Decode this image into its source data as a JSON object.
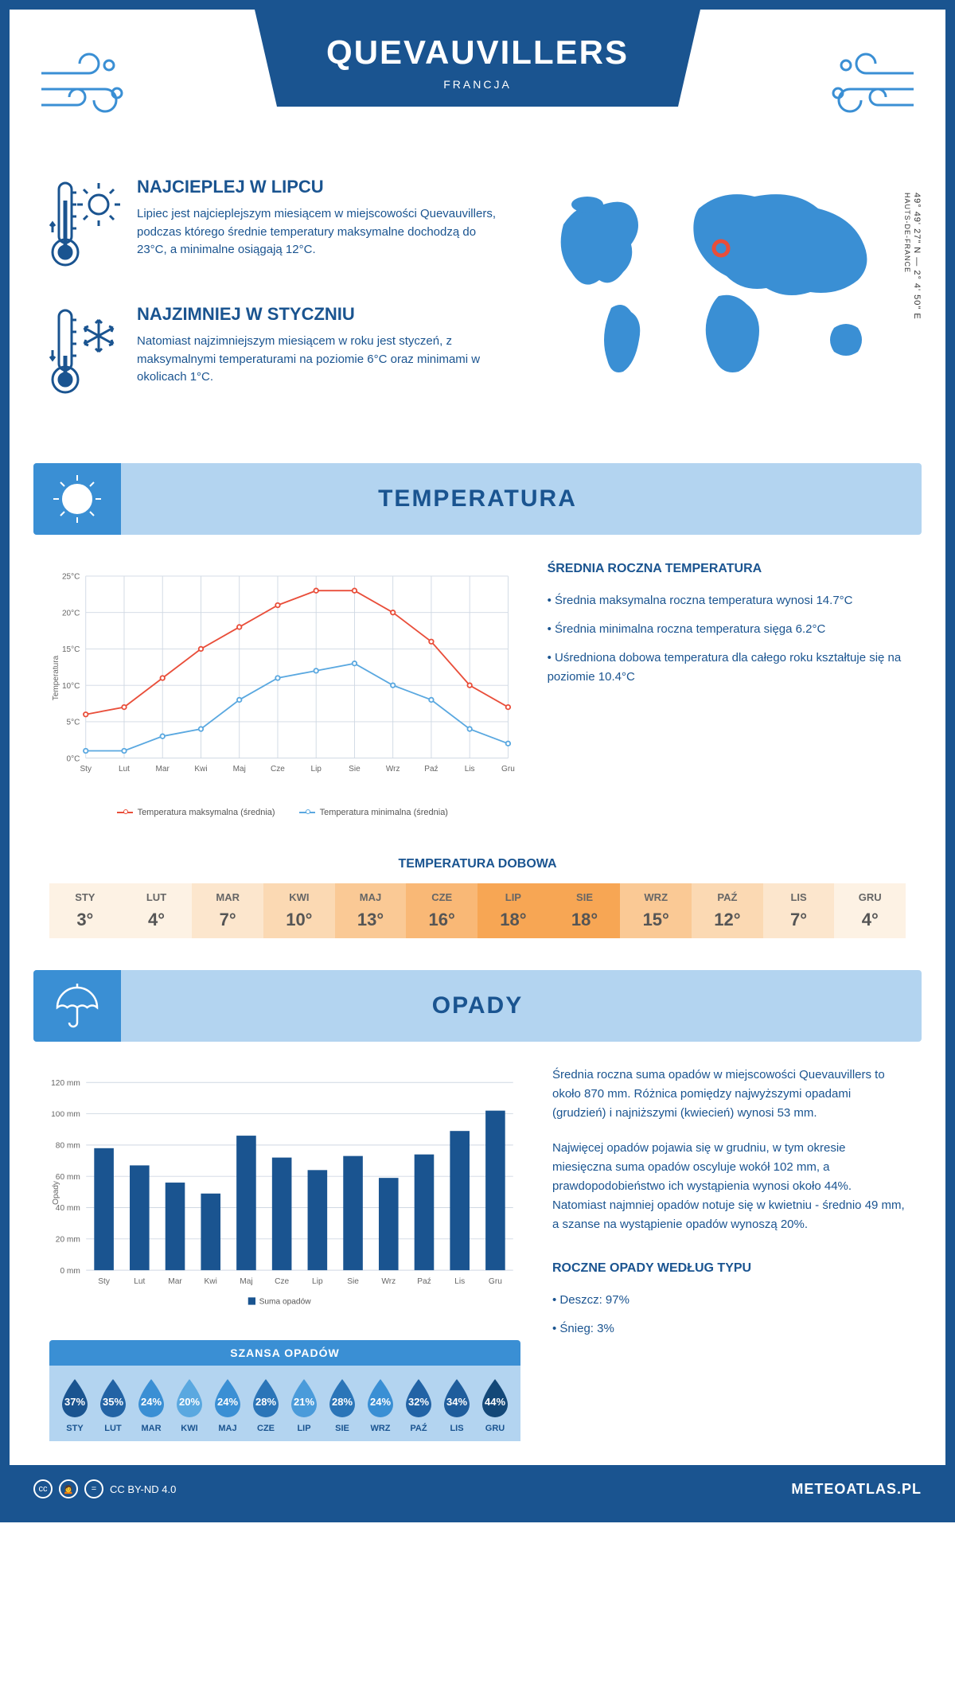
{
  "header": {
    "title": "QUEVAUVILLERS",
    "subtitle": "FRANCJA"
  },
  "facts": {
    "hot": {
      "title": "NAJCIEPLEJ W LIPCU",
      "text": "Lipiec jest najcieplejszym miesiącem w miejscowości Quevauvillers, podczas którego średnie temperatury maksymalne dochodzą do 23°C, a minimalne osiągają 12°C."
    },
    "cold": {
      "title": "NAJZIMNIEJ W STYCZNIU",
      "text": "Natomiast najzimniejszym miesiącem w roku jest styczeń, z maksymalnymi temperaturami na poziomie 6°C oraz minimami w okolicach 1°C."
    }
  },
  "map": {
    "coords": "49° 49' 27\" N — 2° 4' 50\" E",
    "region": "HAUTS-DE-FRANCE",
    "marker_color": "#e94e3a"
  },
  "temperature": {
    "section_title": "TEMPERATURA",
    "chart": {
      "type": "line",
      "months": [
        "Sty",
        "Lut",
        "Mar",
        "Kwi",
        "Maj",
        "Cze",
        "Lip",
        "Sie",
        "Wrz",
        "Paź",
        "Lis",
        "Gru"
      ],
      "y_label": "Temperatura",
      "y_min": 0,
      "y_max": 25,
      "y_step": 5,
      "y_suffix": "°C",
      "series": [
        {
          "name": "Temperatura maksymalna (średnia)",
          "color": "#e94e3a",
          "values": [
            6,
            7,
            11,
            15,
            18,
            21,
            23,
            23,
            20,
            16,
            10,
            7
          ]
        },
        {
          "name": "Temperatura minimalna (średnia)",
          "color": "#5aa8e0",
          "values": [
            1,
            1,
            3,
            4,
            8,
            11,
            12,
            13,
            10,
            8,
            4,
            2
          ]
        }
      ],
      "grid_color": "#cfd8e3",
      "background_color": "#ffffff",
      "line_width": 2,
      "marker_size": 3
    },
    "side": {
      "title": "ŚREDNIA ROCZNA TEMPERATURA",
      "items": [
        "Średnia maksymalna roczna temperatura wynosi 14.7°C",
        "Średnia minimalna roczna temperatura sięga 6.2°C",
        "Uśredniona dobowa temperatura dla całego roku kształtuje się na poziomie 10.4°C"
      ]
    },
    "daily_table": {
      "title": "TEMPERATURA DOBOWA",
      "months": [
        "STY",
        "LUT",
        "MAR",
        "KWI",
        "MAJ",
        "CZE",
        "LIP",
        "SIE",
        "WRZ",
        "PAŹ",
        "LIS",
        "GRU"
      ],
      "values": [
        "3°",
        "4°",
        "7°",
        "10°",
        "13°",
        "16°",
        "18°",
        "18°",
        "15°",
        "12°",
        "7°",
        "4°"
      ],
      "colors": [
        "#fdf2e4",
        "#fdf2e4",
        "#fce6cd",
        "#fbd9b3",
        "#fac995",
        "#f9b876",
        "#f7a654",
        "#f7a654",
        "#fac995",
        "#fbd9b3",
        "#fce6cd",
        "#fdf2e4"
      ]
    }
  },
  "precipitation": {
    "section_title": "OPADY",
    "chart": {
      "type": "bar",
      "months": [
        "Sty",
        "Lut",
        "Mar",
        "Kwi",
        "Maj",
        "Cze",
        "Lip",
        "Sie",
        "Wrz",
        "Paź",
        "Lis",
        "Gru"
      ],
      "y_label": "Opady",
      "y_min": 0,
      "y_max": 120,
      "y_step": 20,
      "y_suffix": " mm",
      "values": [
        78,
        67,
        56,
        49,
        86,
        72,
        64,
        73,
        59,
        74,
        89,
        102
      ],
      "bar_color": "#1a5490",
      "legend": "Suma opadów",
      "grid_color": "#cfd8e3",
      "bar_width": 0.55
    },
    "side": {
      "para1": "Średnia roczna suma opadów w miejscowości Quevauvillers to około 870 mm. Różnica pomiędzy najwyższymi opadami (grudzień) i najniższymi (kwiecień) wynosi 53 mm.",
      "para2": "Najwięcej opadów pojawia się w grudniu, w tym okresie miesięczna suma opadów oscyluje wokół 102 mm, a prawdopodobieństwo ich wystąpienia wynosi około 44%. Natomiast najmniej opadów notuje się w kwietniu - średnio 49 mm, a szanse na wystąpienie opadów wynoszą 20%."
    },
    "chance": {
      "title": "SZANSA OPADÓW",
      "months": [
        "STY",
        "LUT",
        "MAR",
        "KWI",
        "MAJ",
        "CZE",
        "LIP",
        "SIE",
        "WRZ",
        "PAŹ",
        "LIS",
        "GRU"
      ],
      "values": [
        "37%",
        "35%",
        "24%",
        "20%",
        "24%",
        "28%",
        "21%",
        "28%",
        "24%",
        "32%",
        "34%",
        "44%"
      ],
      "colors": [
        "#1a5490",
        "#2263a5",
        "#3a8fd4",
        "#5aa8e0",
        "#3a8fd4",
        "#2b75b8",
        "#4a9bda",
        "#2b75b8",
        "#3a8fd4",
        "#2263a5",
        "#1f5d9c",
        "#134878"
      ]
    },
    "types": {
      "title": "ROCZNE OPADY WEDŁUG TYPU",
      "items": [
        "Deszcz: 97%",
        "Śnieg: 3%"
      ]
    }
  },
  "footer": {
    "license": "CC BY-ND 4.0",
    "brand": "METEOATLAS.PL"
  },
  "colors": {
    "primary": "#1a5490",
    "light_blue": "#b3d4f0",
    "mid_blue": "#3a8fd4",
    "accent": "#e94e3a"
  }
}
